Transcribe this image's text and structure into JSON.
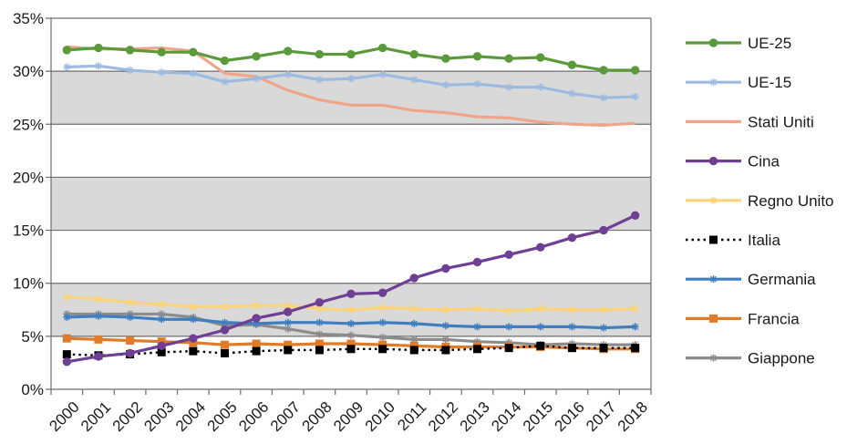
{
  "chart_data": {
    "type": "line",
    "title": "",
    "xlabel": "",
    "ylabel": "",
    "x": [
      "2000",
      "2001",
      "2002",
      "2003",
      "2004",
      "2005",
      "2006",
      "2007",
      "2008",
      "2009",
      "2010",
      "2011",
      "2012",
      "2013",
      "2014",
      "2015",
      "2016",
      "2017",
      "2018"
    ],
    "ylim": [
      0,
      35
    ],
    "yticks": [
      0,
      5,
      10,
      15,
      20,
      25,
      30,
      35
    ],
    "ytick_labels": [
      "0%",
      "5%",
      "10%",
      "15%",
      "20%",
      "25%",
      "30%",
      "35%"
    ],
    "grid": "horizontal",
    "plot_background": "alternating bands #d9d9d9 / #ffffff",
    "legend_position": "right",
    "series": [
      {
        "name": "UE-25",
        "color": "#5b9a3b",
        "marker": "circle",
        "dashed": false,
        "values": [
          32.0,
          32.2,
          32.0,
          31.8,
          31.8,
          31.0,
          31.4,
          31.9,
          31.6,
          31.6,
          32.2,
          31.6,
          31.2,
          31.4,
          31.2,
          31.3,
          30.6,
          30.1,
          30.1
        ]
      },
      {
        "name": "UE-15",
        "color": "#9dbbe0",
        "marker": "plus",
        "dashed": false,
        "values": [
          30.4,
          30.5,
          30.1,
          29.9,
          29.8,
          29.0,
          29.3,
          29.7,
          29.2,
          29.3,
          29.7,
          29.2,
          28.7,
          28.8,
          28.5,
          28.5,
          27.9,
          27.5,
          27.6
        ]
      },
      {
        "name": "Stati Uniti",
        "color": "#f0a58a",
        "marker": "none",
        "dashed": false,
        "values": [
          32.3,
          32.1,
          32.1,
          32.2,
          31.9,
          29.8,
          29.5,
          28.2,
          27.3,
          26.8,
          26.8,
          26.3,
          26.1,
          25.7,
          25.6,
          25.2,
          25.0,
          24.9,
          25.1
        ]
      },
      {
        "name": "Cina",
        "color": "#6e3f93",
        "marker": "circle",
        "dashed": false,
        "values": [
          2.6,
          3.1,
          3.4,
          4.1,
          4.8,
          5.6,
          6.7,
          7.3,
          8.2,
          9.0,
          9.1,
          10.5,
          11.4,
          12.0,
          12.7,
          13.4,
          14.3,
          15.0,
          16.4
        ]
      },
      {
        "name": "Regno Unito",
        "color": "#fbd378",
        "marker": "plus",
        "dashed": false,
        "values": [
          8.7,
          8.5,
          8.2,
          8.0,
          7.8,
          7.8,
          7.9,
          7.9,
          7.6,
          7.5,
          7.7,
          7.6,
          7.5,
          7.6,
          7.4,
          7.6,
          7.5,
          7.5,
          7.6
        ]
      },
      {
        "name": "Italia",
        "color": "#000000",
        "marker": "square",
        "dashed": true,
        "values": [
          3.3,
          3.2,
          3.3,
          3.5,
          3.6,
          3.4,
          3.6,
          3.7,
          3.7,
          3.8,
          3.8,
          3.7,
          3.7,
          3.8,
          3.9,
          4.1,
          3.9,
          3.9,
          3.9
        ]
      },
      {
        "name": "Germania",
        "color": "#3f7fc0",
        "marker": "plus",
        "dashed": false,
        "values": [
          6.8,
          6.9,
          6.8,
          6.6,
          6.6,
          6.3,
          6.2,
          6.3,
          6.3,
          6.2,
          6.3,
          6.2,
          6.0,
          5.9,
          5.9,
          5.9,
          5.9,
          5.8,
          5.9
        ]
      },
      {
        "name": "Francia",
        "color": "#e07b2a",
        "marker": "square",
        "dashed": false,
        "values": [
          4.8,
          4.7,
          4.6,
          4.5,
          4.4,
          4.2,
          4.3,
          4.2,
          4.3,
          4.3,
          4.2,
          4.1,
          4.0,
          4.0,
          4.0,
          4.0,
          3.9,
          3.8,
          3.8
        ]
      },
      {
        "name": "Giappone",
        "color": "#8c8c8c",
        "marker": "plus",
        "dashed": false,
        "values": [
          7.1,
          7.1,
          7.1,
          7.1,
          6.8,
          6.0,
          6.1,
          5.7,
          5.2,
          5.1,
          4.9,
          4.7,
          4.7,
          4.5,
          4.4,
          4.2,
          4.3,
          4.2,
          4.2
        ]
      }
    ]
  }
}
